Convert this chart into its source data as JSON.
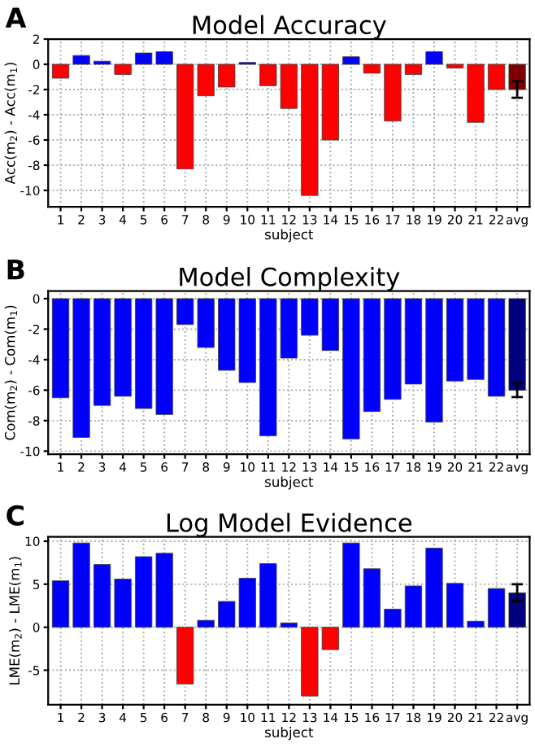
{
  "chart_data": [
    {
      "type": "bar",
      "title": "Model Accuracy",
      "xlabel": "subject",
      "ylabel": "Acc(m$_{2}$) - Acc(m$_{1}$)",
      "annotations": [
        "A"
      ],
      "categories": [
        "1",
        "2",
        "3",
        "4",
        "5",
        "6",
        "7",
        "8",
        "9",
        "10",
        "11",
        "12",
        "13",
        "14",
        "15",
        "16",
        "17",
        "18",
        "19",
        "20",
        "21",
        "22",
        "avg"
      ],
      "values": [
        -1.1,
        0.7,
        0.25,
        -0.8,
        0.9,
        1.0,
        -8.3,
        -2.5,
        -1.8,
        0.15,
        -1.7,
        -3.5,
        -10.4,
        -6.0,
        0.6,
        -0.7,
        -4.5,
        -0.8,
        1.0,
        -0.3,
        -4.6,
        -2.0,
        -2.0
      ],
      "colors": [
        "#ff0000",
        "#0000ff",
        "#0000ff",
        "#ff0000",
        "#0000ff",
        "#0000ff",
        "#ff0000",
        "#ff0000",
        "#ff0000",
        "#0000ff",
        "#ff0000",
        "#ff0000",
        "#ff0000",
        "#ff0000",
        "#0000ff",
        "#ff0000",
        "#ff0000",
        "#ff0000",
        "#0000ff",
        "#ff0000",
        "#ff0000",
        "#ff0000",
        "#800000"
      ],
      "errors": [
        null,
        null,
        null,
        null,
        null,
        null,
        null,
        null,
        null,
        null,
        null,
        null,
        null,
        null,
        null,
        null,
        null,
        null,
        null,
        null,
        null,
        null,
        0.65
      ],
      "ylim": [
        -11.3,
        2
      ],
      "yticks": [
        -10,
        -8,
        -6,
        -4,
        -2,
        0,
        2
      ],
      "grid": true
    },
    {
      "type": "bar",
      "title": "Model Complexity",
      "xlabel": "subject",
      "ylabel": "Com(m$_{2}$) - Com(m$_{1}$)",
      "annotations": [
        "B"
      ],
      "categories": [
        "1",
        "2",
        "3",
        "4",
        "5",
        "6",
        "7",
        "8",
        "9",
        "10",
        "11",
        "12",
        "13",
        "14",
        "15",
        "16",
        "17",
        "18",
        "19",
        "20",
        "21",
        "22",
        "avg"
      ],
      "values": [
        -6.5,
        -9.1,
        -7.0,
        -6.4,
        -7.2,
        -7.6,
        -1.7,
        -3.2,
        -4.7,
        -5.5,
        -9.0,
        -3.9,
        -2.4,
        -3.4,
        -9.2,
        -7.4,
        -6.6,
        -5.6,
        -8.1,
        -5.4,
        -5.3,
        -6.4,
        -6.0
      ],
      "colors": [
        "#0000ff",
        "#0000ff",
        "#0000ff",
        "#0000ff",
        "#0000ff",
        "#0000ff",
        "#0000ff",
        "#0000ff",
        "#0000ff",
        "#0000ff",
        "#0000ff",
        "#0000ff",
        "#0000ff",
        "#0000ff",
        "#0000ff",
        "#0000ff",
        "#0000ff",
        "#0000ff",
        "#0000ff",
        "#0000ff",
        "#0000ff",
        "#0000ff",
        "#000080"
      ],
      "errors": [
        null,
        null,
        null,
        null,
        null,
        null,
        null,
        null,
        null,
        null,
        null,
        null,
        null,
        null,
        null,
        null,
        null,
        null,
        null,
        null,
        null,
        null,
        0.45
      ],
      "ylim": [
        -10.2,
        0.5
      ],
      "yticks": [
        -10,
        -8,
        -6,
        -4,
        -2,
        0
      ],
      "grid": true
    },
    {
      "type": "bar",
      "title": "Log Model Evidence",
      "xlabel": "subject",
      "ylabel": "LME(m$_{2}$) - LME(m$_{1}$)",
      "annotations": [
        "C"
      ],
      "categories": [
        "1",
        "2",
        "3",
        "4",
        "5",
        "6",
        "7",
        "8",
        "9",
        "10",
        "11",
        "12",
        "13",
        "14",
        "15",
        "16",
        "17",
        "18",
        "19",
        "20",
        "21",
        "22",
        "avg"
      ],
      "values": [
        5.4,
        9.8,
        7.3,
        5.6,
        8.2,
        8.6,
        -6.6,
        0.8,
        3.0,
        5.7,
        7.4,
        0.5,
        -8.0,
        -2.6,
        9.8,
        6.8,
        2.1,
        4.8,
        9.2,
        5.1,
        0.7,
        4.5,
        4.0
      ],
      "colors": [
        "#0000ff",
        "#0000ff",
        "#0000ff",
        "#0000ff",
        "#0000ff",
        "#0000ff",
        "#ff0000",
        "#0000ff",
        "#0000ff",
        "#0000ff",
        "#0000ff",
        "#0000ff",
        "#ff0000",
        "#ff0000",
        "#0000ff",
        "#0000ff",
        "#0000ff",
        "#0000ff",
        "#0000ff",
        "#0000ff",
        "#0000ff",
        "#0000ff",
        "#000080"
      ],
      "errors": [
        null,
        null,
        null,
        null,
        null,
        null,
        null,
        null,
        null,
        null,
        null,
        null,
        null,
        null,
        null,
        null,
        null,
        null,
        null,
        null,
        null,
        null,
        1.0
      ],
      "ylim": [
        -9,
        10.5
      ],
      "yticks": [
        -5,
        0,
        5,
        10
      ],
      "grid": true
    }
  ]
}
